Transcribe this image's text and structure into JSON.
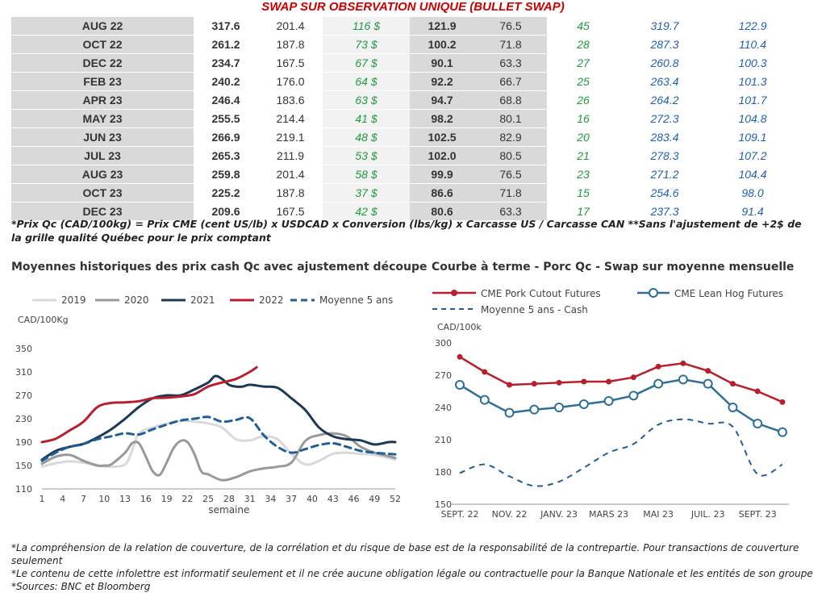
{
  "header": "SWAP SUR OBSERVATION UNIQUE (BULLET SWAP)",
  "table": {
    "rows": [
      [
        "AUG 22",
        "317.6",
        "201.4",
        "116 $",
        "121.9",
        "76.5",
        "45",
        "319.7",
        "122.9"
      ],
      [
        "OCT 22",
        "261.2",
        "187.8",
        "73 $",
        "100.2",
        "71.8",
        "28",
        "287.3",
        "110.4"
      ],
      [
        "DEC 22",
        "234.7",
        "167.5",
        "67 $",
        "90.1",
        "63.3",
        "27",
        "260.8",
        "100.3"
      ],
      [
        "FEB 23",
        "240.2",
        "176.0",
        "64 $",
        "92.2",
        "66.7",
        "25",
        "263.4",
        "101.3"
      ],
      [
        "APR 23",
        "246.4",
        "183.6",
        "63 $",
        "94.7",
        "68.8",
        "26",
        "264.2",
        "101.7"
      ],
      [
        "MAY 23",
        "255.5",
        "214.4",
        "41 $",
        "98.2",
        "80.1",
        "16",
        "272.3",
        "104.8"
      ],
      [
        "JUN 23",
        "266.9",
        "219.1",
        "48 $",
        "102.5",
        "82.9",
        "20",
        "283.4",
        "109.1"
      ],
      [
        "JUL 23",
        "265.3",
        "211.9",
        "53 $",
        "102.0",
        "80.5",
        "21",
        "278.3",
        "107.2"
      ],
      [
        "AUG 23",
        "259.8",
        "201.4",
        "58 $",
        "99.9",
        "76.5",
        "23",
        "271.2",
        "104.4"
      ],
      [
        "OCT 23",
        "225.2",
        "187.8",
        "37 $",
        "86.6",
        "71.8",
        "15",
        "254.6",
        "98.0"
      ],
      [
        "DEC 23",
        "209.6",
        "167.5",
        "42 $",
        "80.6",
        "63.3",
        "17",
        "237.3",
        "91.4"
      ]
    ]
  },
  "note": "*Prix Qc (CAD/100kg) = Prix CME (cent US/lb) x USDCAD x Conversion (lbs/kg) x Carcasse US / Carcasse CAN **Sans l'ajustement de +2$ de la grille qualité Québec pour le prix comptant",
  "chart_data": [
    {
      "type": "line",
      "title": "Moyennes historiques des prix cash Qc avec ajustement découpe",
      "ylabel": "CAD/100Kg",
      "xlabel": "semaine",
      "ylim": [
        110,
        350
      ],
      "xlim": [
        1,
        52
      ],
      "yticks": [
        110,
        150,
        190,
        230,
        270,
        310,
        350
      ],
      "xticks": [
        1,
        4,
        7,
        10,
        13,
        16,
        19,
        22,
        25,
        28,
        31,
        34,
        37,
        40,
        43,
        46,
        49,
        52
      ],
      "legend_position": "top",
      "series": [
        {
          "name": "2019",
          "color": "#d9d9d9",
          "style": "solid",
          "x": [
            1,
            3,
            5,
            7,
            9,
            11,
            13,
            14,
            15,
            17,
            19,
            21,
            23,
            25,
            27,
            29,
            31,
            33,
            35,
            37,
            39,
            41,
            43,
            45,
            47,
            49,
            51,
            52
          ],
          "y": [
            148,
            154,
            157,
            155,
            150,
            148,
            152,
            175,
            205,
            215,
            222,
            226,
            225,
            222,
            215,
            195,
            193,
            200,
            195,
            170,
            152,
            158,
            170,
            172,
            170,
            168,
            163,
            160
          ]
        },
        {
          "name": "2020",
          "color": "#999999",
          "style": "solid",
          "x": [
            1,
            3,
            5,
            7,
            9,
            10,
            11,
            13,
            14,
            15,
            16,
            17,
            18,
            19,
            20,
            21,
            22,
            23,
            24,
            25,
            27,
            29,
            31,
            33,
            35,
            37,
            39,
            41,
            43,
            45,
            47,
            49,
            51,
            52
          ],
          "y": [
            153,
            165,
            168,
            158,
            150,
            150,
            152,
            172,
            188,
            188,
            165,
            140,
            134,
            155,
            180,
            192,
            190,
            170,
            140,
            135,
            125,
            130,
            140,
            145,
            148,
            155,
            192,
            202,
            205,
            200,
            182,
            172,
            166,
            163
          ]
        },
        {
          "name": "2021",
          "color": "#1c3857",
          "style": "solid",
          "x": [
            1,
            3,
            5,
            7,
            9,
            11,
            13,
            15,
            17,
            19,
            21,
            23,
            25,
            26,
            27,
            28,
            29,
            30,
            31,
            33,
            35,
            37,
            39,
            41,
            43,
            45,
            47,
            49,
            51,
            52
          ],
          "y": [
            160,
            175,
            182,
            187,
            198,
            212,
            230,
            250,
            265,
            270,
            270,
            280,
            292,
            303,
            298,
            288,
            285,
            285,
            288,
            285,
            283,
            265,
            245,
            215,
            200,
            195,
            193,
            186,
            190,
            190
          ]
        },
        {
          "name": "2022",
          "color": "#b81f2d",
          "style": "solid",
          "x": [
            1,
            3,
            5,
            7,
            9,
            11,
            13,
            15,
            17,
            19,
            21,
            23,
            25,
            27,
            29,
            31,
            32
          ],
          "y": [
            190,
            196,
            210,
            225,
            250,
            257,
            258,
            260,
            265,
            266,
            268,
            272,
            285,
            292,
            298,
            310,
            318
          ]
        },
        {
          "name": "Moyenne 5 ans",
          "color": "#1f5f99",
          "style": "dashed",
          "x": [
            1,
            3,
            5,
            7,
            9,
            11,
            13,
            15,
            17,
            19,
            21,
            23,
            25,
            27,
            29,
            31,
            33,
            35,
            37,
            39,
            41,
            43,
            45,
            47,
            49,
            51,
            52
          ],
          "y": [
            158,
            172,
            182,
            187,
            195,
            200,
            205,
            203,
            212,
            220,
            227,
            230,
            233,
            225,
            228,
            231,
            202,
            182,
            172,
            178,
            185,
            188,
            182,
            175,
            172,
            170,
            169
          ]
        }
      ]
    },
    {
      "type": "line",
      "title": "Courbe à terme - Porc Qc - Swap sur moyenne mensuelle",
      "ylabel": "CAD/100k",
      "ylim": [
        150,
        300
      ],
      "yticks": [
        150,
        180,
        210,
        240,
        270,
        300
      ],
      "categories": [
        "SEPT. 22",
        "OCT. 22",
        "NOV. 22",
        "DÉC. 22",
        "JANV. 23",
        "FÉVR. 23",
        "MARS 23",
        "AVR. 23",
        "MAI 23",
        "JUIN 23",
        "JUIL. 23",
        "AOÛT 23",
        "SEPT. 23",
        "OCT. 23"
      ],
      "xtick_labels": [
        "SEPT. 22",
        "NOV. 22",
        "JANV. 23",
        "MARS 23",
        "MAI 23",
        "JUIL. 23",
        "SEPT. 23"
      ],
      "legend_position": "top",
      "series": [
        {
          "name": "CME Pork Cutout Futures",
          "color": "#b81f2d",
          "style": "solid-dot",
          "values": [
            287,
            273,
            261,
            262,
            263,
            264,
            264,
            268,
            278,
            281,
            274,
            262,
            255,
            245
          ]
        },
        {
          "name": "CME Lean Hog Futures",
          "color": "#2d6f99",
          "style": "solid-circle",
          "values": [
            261,
            247,
            235,
            238,
            240,
            243,
            246,
            251,
            262,
            266,
            262,
            240,
            225,
            217
          ]
        },
        {
          "name": "Moyenne 5 ans - Cash",
          "color": "#1f5f99",
          "style": "dashed",
          "values": [
            179,
            187,
            176,
            167,
            171,
            184,
            198,
            206,
            224,
            229,
            225,
            222,
            178,
            187
          ]
        }
      ]
    }
  ],
  "footnotes": [
    "*La compréhension de la relation de couverture, de la corrélation et du risque de base est de la responsabilité de la contrepartie. Pour transactions de couverture seulement",
    "*Le contenu de cette infolettre est informatif seulement et il ne crée aucune obligation légale ou contractuelle pour la Banque Nationale et les entités de son groupe",
    "*Sources: BNC et Bloomberg"
  ]
}
